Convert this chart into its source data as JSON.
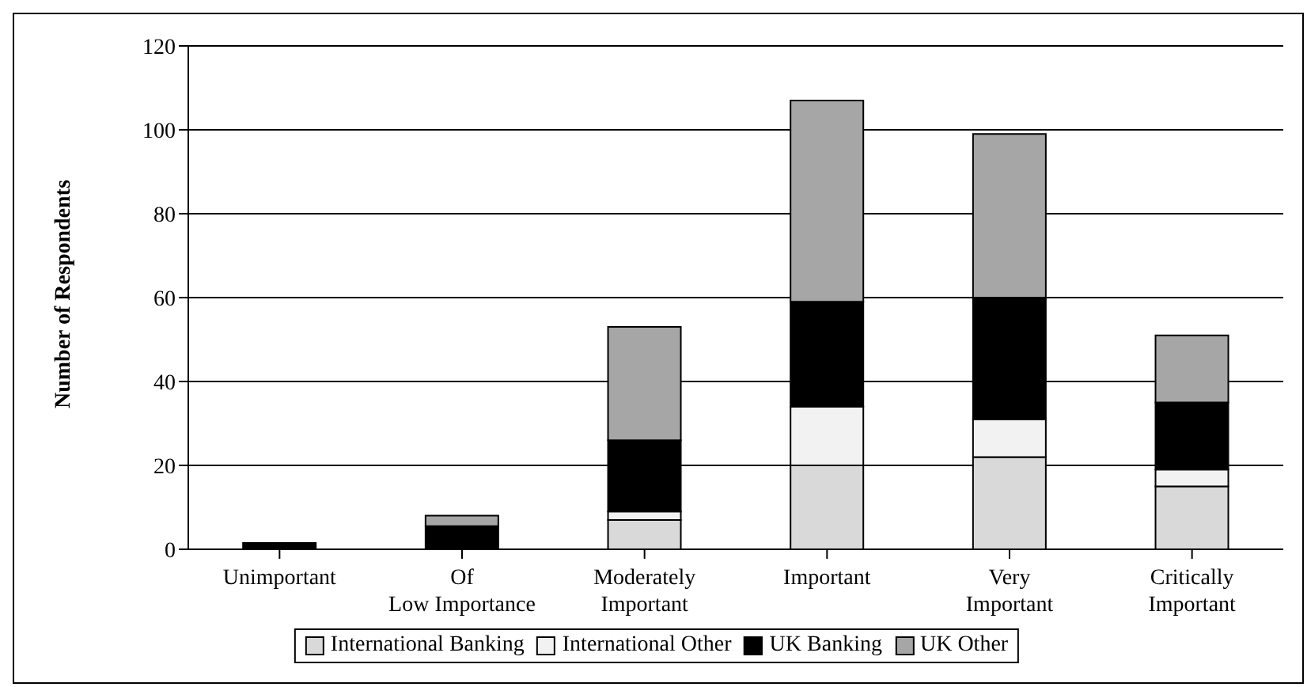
{
  "chart_data": {
    "type": "bar",
    "stacked": true,
    "ylabel": "Number of Respondents",
    "categories": [
      "Unimportant",
      "Of Low Importance",
      "Moderately Important",
      "Important",
      "Very Important",
      "Critically Important"
    ],
    "series": [
      {
        "name": "International Banking",
        "color": "#d9d9d9",
        "values": [
          0,
          0,
          7,
          20,
          22,
          15
        ]
      },
      {
        "name": "International Other",
        "color": "#f2f2f2",
        "values": [
          0,
          0,
          2,
          14,
          9,
          4
        ]
      },
      {
        "name": "UK Banking",
        "color": "#000000",
        "values": [
          1.5,
          5.5,
          17,
          25,
          29,
          16
        ]
      },
      {
        "name": "UK Other",
        "color": "#a6a6a6",
        "values": [
          0,
          2.5,
          27,
          48,
          39,
          16
        ]
      }
    ],
    "ylim": [
      0,
      120
    ],
    "yticks": [
      0,
      20,
      40,
      60,
      80,
      100,
      120
    ],
    "grid": "y",
    "legend": "bottom"
  }
}
